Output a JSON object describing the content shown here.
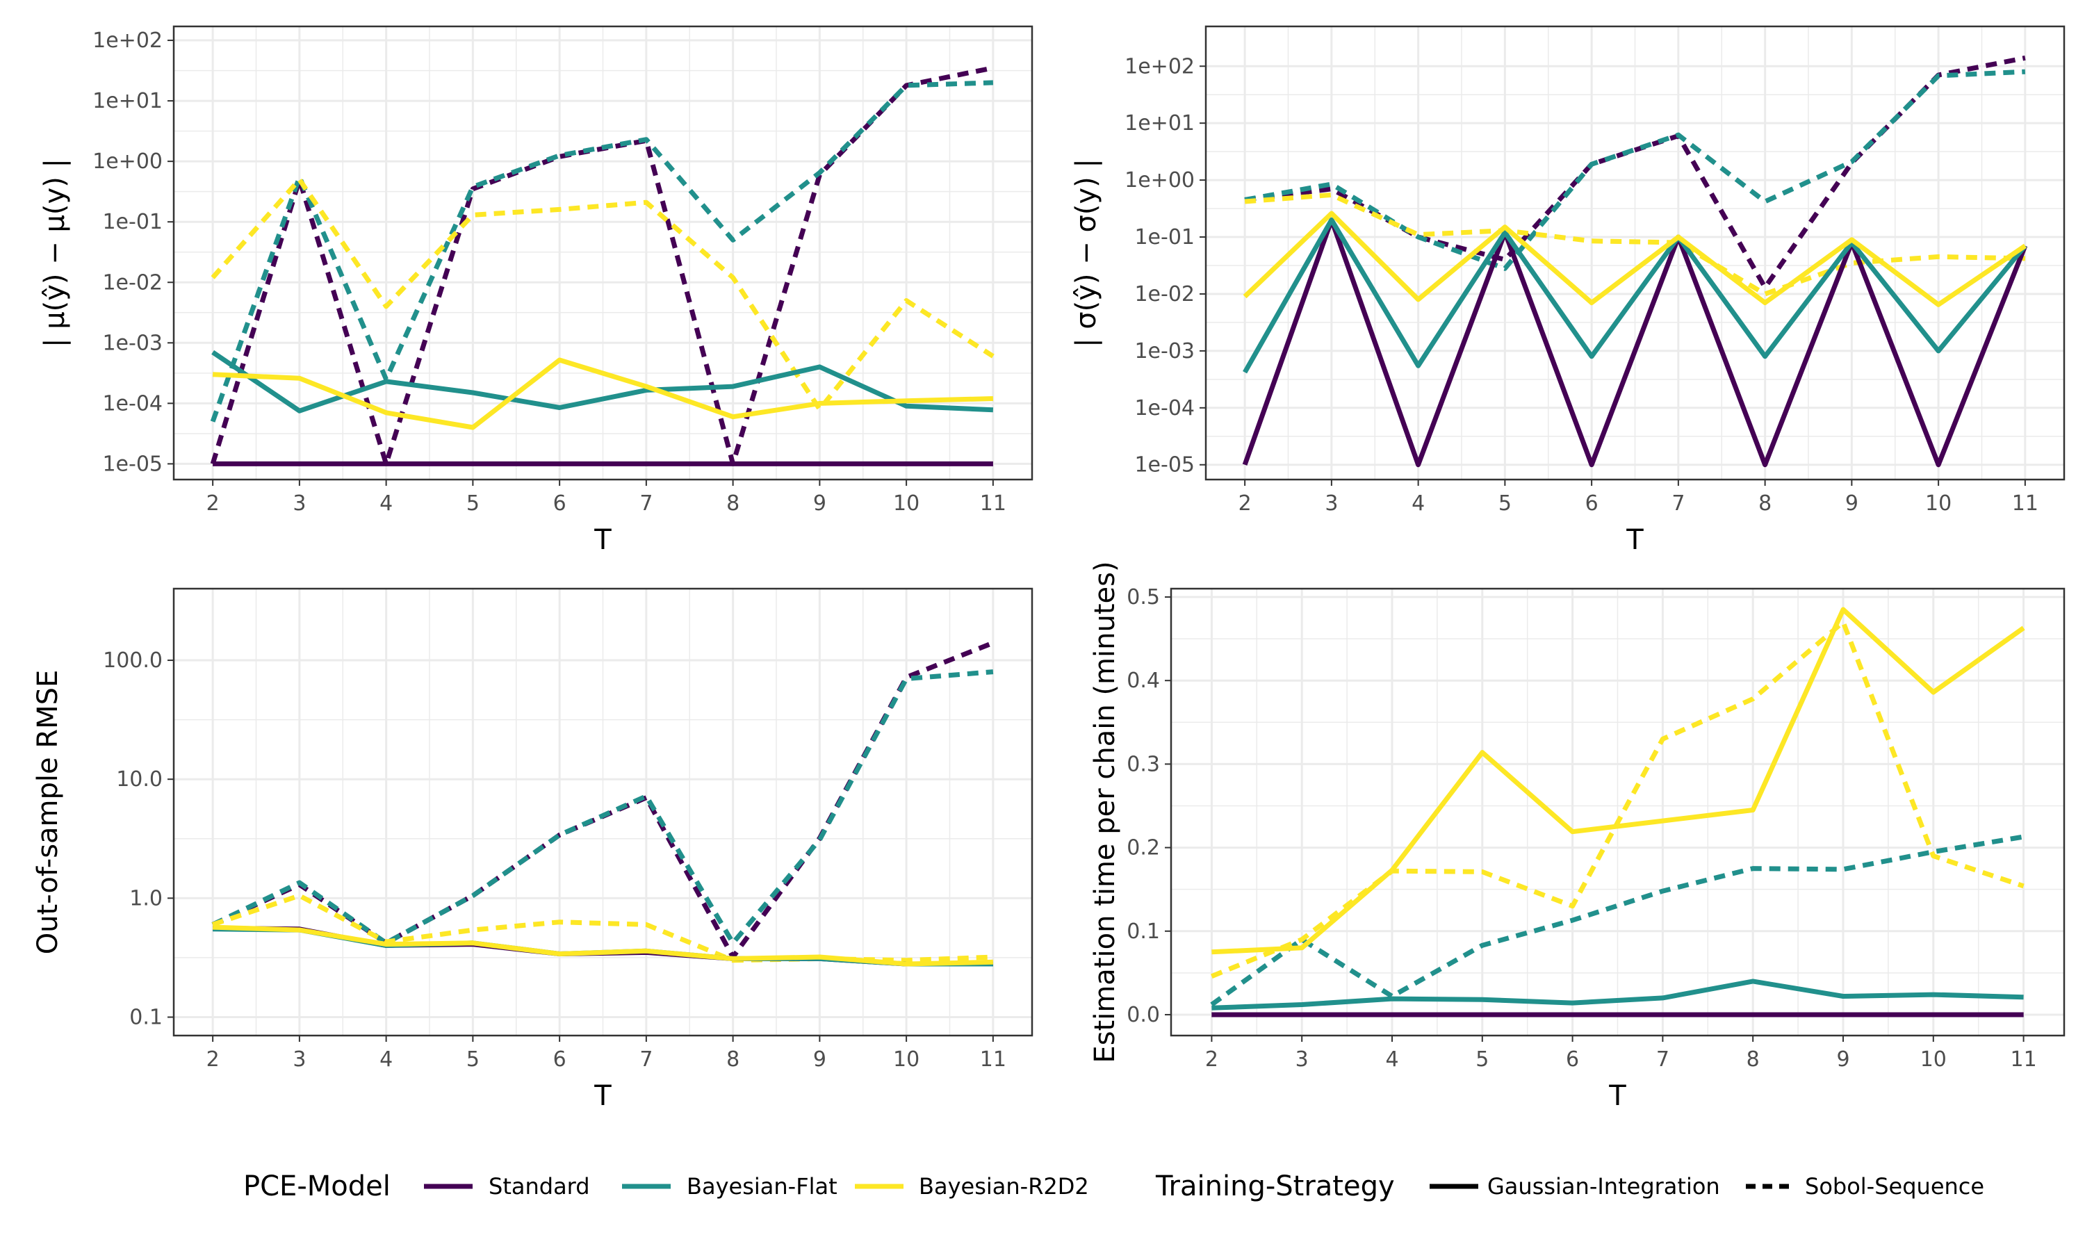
{
  "chart_data": [
    {
      "type": "line",
      "scale": "log",
      "xlabel": "T",
      "ylabel": "| μ(ŷ) − μ(y) |",
      "x": [
        2,
        3,
        4,
        5,
        6,
        7,
        8,
        9,
        10,
        11
      ],
      "ylim": [
        5.5e-06,
        170
      ],
      "yticks": [
        1e-05,
        0.0001,
        0.001,
        0.01,
        0.1,
        1,
        10,
        100
      ],
      "ytick_labels": [
        "1e-05",
        "1e-04",
        "1e-03",
        "1e-02",
        "1e-01",
        "1e+00",
        "1e+01",
        "1e+02"
      ],
      "series": [
        {
          "name": "Standard",
          "strategy": "Gaussian-Integration",
          "values": [
            1e-05,
            1e-05,
            1e-05,
            1e-05,
            1e-05,
            1e-05,
            1e-05,
            1e-05,
            1e-05,
            1e-05
          ]
        },
        {
          "name": "Standard",
          "strategy": "Sobol-Sequence",
          "values": [
            1e-05,
            0.5,
            1e-05,
            0.35,
            1.2,
            2.2,
            1e-05,
            0.6,
            18,
            35
          ]
        },
        {
          "name": "Bayesian-Flat",
          "strategy": "Gaussian-Integration",
          "values": [
            0.0007,
            7.5e-05,
            0.00023,
            0.00015,
            8.5e-05,
            0.000165,
            0.00019,
            0.0004,
            9e-05,
            7.8e-05
          ]
        },
        {
          "name": "Bayesian-Flat",
          "strategy": "Sobol-Sequence",
          "values": [
            5e-05,
            0.55,
            0.00025,
            0.38,
            1.25,
            2.3,
            0.05,
            0.65,
            18,
            20
          ]
        },
        {
          "name": "Bayesian-R2D2",
          "strategy": "Gaussian-Integration",
          "values": [
            0.0003,
            0.00026,
            7e-05,
            4e-05,
            0.00052,
            0.00019,
            6e-05,
            0.0001,
            0.00011,
            0.00012
          ]
        },
        {
          "name": "Bayesian-R2D2",
          "strategy": "Sobol-Sequence",
          "values": [
            0.012,
            0.5,
            0.004,
            0.13,
            0.16,
            0.21,
            0.012,
            8e-05,
            0.005,
            0.0006
          ]
        }
      ]
    },
    {
      "type": "line",
      "scale": "log",
      "xlabel": "T",
      "ylabel": "| σ(ŷ) − σ(y) |",
      "x": [
        2,
        3,
        4,
        5,
        6,
        7,
        8,
        9,
        10,
        11
      ],
      "ylim": [
        5.5e-06,
        500
      ],
      "yticks": [
        1e-05,
        0.0001,
        0.001,
        0.01,
        0.1,
        1,
        10,
        100
      ],
      "ytick_labels": [
        "1e-05",
        "1e-04",
        "1e-03",
        "1e-02",
        "1e-01",
        "1e+00",
        "1e+01",
        "1e+02"
      ],
      "series": [
        {
          "name": "Standard",
          "strategy": "Gaussian-Integration",
          "values": [
            1e-05,
            0.2,
            1e-05,
            0.12,
            1e-05,
            0.1,
            1e-05,
            0.08,
            1e-05,
            0.07
          ]
        },
        {
          "name": "Standard",
          "strategy": "Sobol-Sequence",
          "values": [
            0.45,
            0.7,
            0.1,
            0.04,
            1.9,
            6,
            0.013,
            2,
            70,
            140
          ]
        },
        {
          "name": "Bayesian-Flat",
          "strategy": "Gaussian-Integration",
          "values": [
            0.00042,
            0.2,
            0.00055,
            0.12,
            0.0008,
            0.1,
            0.0008,
            0.08,
            0.001,
            0.07
          ]
        },
        {
          "name": "Bayesian-Flat",
          "strategy": "Sobol-Sequence",
          "values": [
            0.45,
            0.85,
            0.1,
            0.028,
            1.9,
            6.2,
            0.42,
            2.1,
            68,
            80
          ]
        },
        {
          "name": "Bayesian-R2D2",
          "strategy": "Gaussian-Integration",
          "values": [
            0.009,
            0.26,
            0.008,
            0.15,
            0.007,
            0.1,
            0.007,
            0.09,
            0.0065,
            0.07
          ]
        },
        {
          "name": "Bayesian-R2D2",
          "strategy": "Sobol-Sequence",
          "values": [
            0.42,
            0.55,
            0.11,
            0.13,
            0.085,
            0.08,
            0.01,
            0.035,
            0.045,
            0.042
          ]
        }
      ]
    },
    {
      "type": "line",
      "scale": "log",
      "xlabel": "T",
      "ylabel": "Out-of-sample RMSE",
      "x": [
        2,
        3,
        4,
        5,
        6,
        7,
        8,
        9,
        10,
        11
      ],
      "ylim": [
        0.07,
        400
      ],
      "yticks": [
        0.1,
        1,
        10,
        100
      ],
      "ytick_labels": [
        "0.1",
        "1.0",
        "10.0",
        "100.0"
      ],
      "series": [
        {
          "name": "Standard",
          "strategy": "Gaussian-Integration",
          "values": [
            0.56,
            0.55,
            0.4,
            0.41,
            0.34,
            0.35,
            0.31,
            0.31,
            0.28,
            0.28
          ]
        },
        {
          "name": "Standard",
          "strategy": "Sobol-Sequence",
          "values": [
            0.6,
            1.3,
            0.42,
            1.05,
            3.4,
            7,
            0.32,
            3.2,
            72,
            140
          ]
        },
        {
          "name": "Bayesian-Flat",
          "strategy": "Gaussian-Integration",
          "values": [
            0.55,
            0.54,
            0.4,
            0.42,
            0.34,
            0.36,
            0.31,
            0.31,
            0.28,
            0.28
          ]
        },
        {
          "name": "Bayesian-Flat",
          "strategy": "Sobol-Sequence",
          "values": [
            0.6,
            1.35,
            0.42,
            1.05,
            3.4,
            7.2,
            0.42,
            3.1,
            70,
            80
          ]
        },
        {
          "name": "Bayesian-R2D2",
          "strategy": "Gaussian-Integration",
          "values": [
            0.57,
            0.54,
            0.41,
            0.42,
            0.34,
            0.36,
            0.31,
            0.32,
            0.28,
            0.29
          ]
        },
        {
          "name": "Bayesian-R2D2",
          "strategy": "Sobol-Sequence",
          "values": [
            0.6,
            1.05,
            0.43,
            0.54,
            0.63,
            0.6,
            0.3,
            0.31,
            0.3,
            0.32
          ]
        }
      ]
    },
    {
      "type": "line",
      "scale": "linear",
      "xlabel": "T",
      "ylabel": "Estimation time per chain (minutes)",
      "x": [
        2,
        3,
        4,
        5,
        6,
        7,
        8,
        9,
        10,
        11
      ],
      "ylim": [
        -0.025,
        0.51
      ],
      "yticks": [
        0.0,
        0.1,
        0.2,
        0.3,
        0.4,
        0.5
      ],
      "ytick_labels": [
        "0.0",
        "0.1",
        "0.2",
        "0.3",
        "0.4",
        "0.5"
      ],
      "series": [
        {
          "name": "Standard",
          "strategy": "Gaussian-Integration",
          "values": [
            0,
            0,
            0,
            0,
            0,
            0,
            0,
            0,
            0,
            0
          ]
        },
        {
          "name": "Standard",
          "strategy": "Sobol-Sequence",
          "values": [
            0,
            0,
            0,
            0,
            0,
            0,
            0,
            0,
            0,
            0
          ]
        },
        {
          "name": "Bayesian-Flat",
          "strategy": "Gaussian-Integration",
          "values": [
            0.008,
            0.012,
            0.019,
            0.018,
            0.014,
            0.02,
            0.04,
            0.022,
            0.024,
            0.021
          ]
        },
        {
          "name": "Bayesian-Flat",
          "strategy": "Sobol-Sequence",
          "values": [
            0.012,
            0.09,
            0.022,
            0.083,
            0.113,
            0.148,
            0.175,
            0.174,
            0.195,
            0.213
          ]
        },
        {
          "name": "Bayesian-R2D2",
          "strategy": "Gaussian-Integration",
          "values": [
            0.075,
            0.08,
            0.173,
            0.314,
            0.219,
            0.232,
            0.245,
            0.485,
            0.386,
            0.463
          ]
        },
        {
          "name": "Bayesian-R2D2",
          "strategy": "Sobol-Sequence",
          "values": [
            0.046,
            0.09,
            0.172,
            0.171,
            0.13,
            0.33,
            0.378,
            0.47,
            0.19,
            0.154
          ]
        }
      ]
    }
  ],
  "legend": {
    "model_title": "PCE-Model",
    "models": [
      {
        "name": "Standard",
        "color": "#440154"
      },
      {
        "name": "Bayesian-Flat",
        "color": "#21908C"
      },
      {
        "name": "Bayesian-R2D2",
        "color": "#FDE725"
      }
    ],
    "strategy_title": "Training-Strategy",
    "strategies": [
      {
        "name": "Gaussian-Integration",
        "dash": "solid"
      },
      {
        "name": "Sobol-Sequence",
        "dash": "dashed"
      }
    ]
  },
  "colors": {
    "Standard": "#440154",
    "Bayesian-Flat": "#21908C",
    "Bayesian-R2D2": "#FDE725",
    "grid": "#ebebeb",
    "axis_text": "#4d4d4d"
  }
}
